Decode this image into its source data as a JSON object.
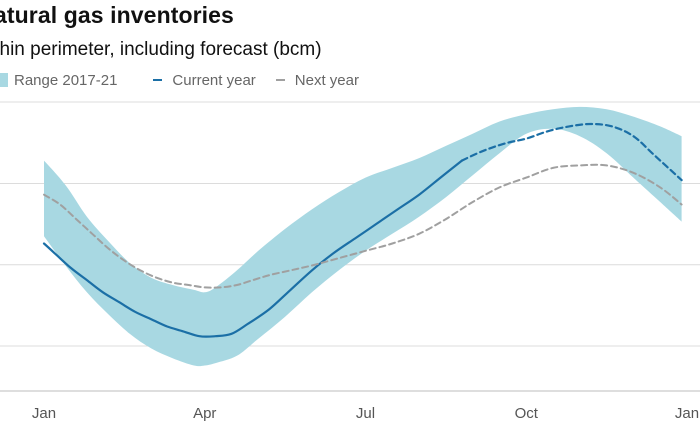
{
  "chart_data": {
    "type": "line",
    "title": "atural gas inventories",
    "subtitle": "ithin perimeter, including forecast (bcm)",
    "x_tick_labels": [
      "Jan",
      "Apr",
      "Jul",
      "Oct",
      "Jan"
    ],
    "xlim": [
      0,
      12
    ],
    "ylim": [
      0,
      100
    ],
    "grid": true,
    "legend_position": "top",
    "colors": {
      "range": "#a8d8e2",
      "current": "#1b6fa6",
      "next": "#a0a0a0",
      "grid": "#dcdcdc"
    },
    "range_band": {
      "name": "Range 2017-21",
      "x": [
        0,
        0.4,
        0.8,
        1.2,
        1.6,
        2.0,
        2.4,
        2.8,
        3.0,
        3.2,
        3.6,
        4.0,
        4.5,
        5.0,
        5.5,
        6.0,
        6.5,
        7.0,
        7.5,
        8.0,
        8.5,
        9.0,
        9.5,
        10.0,
        10.5,
        11.0,
        11.5,
        11.9
      ],
      "min": [
        45,
        33,
        22,
        13,
        5,
        -1,
        -5,
        -8,
        -8,
        -7,
        -4,
        3,
        12,
        22,
        31,
        39,
        46,
        53,
        61,
        70,
        79,
        87,
        89,
        86,
        79,
        69,
        59,
        51
      ],
      "max": [
        76,
        66,
        53,
        43,
        34,
        28,
        25,
        23,
        22,
        24,
        31,
        39,
        48,
        56,
        63,
        69,
        73,
        77,
        82,
        87,
        92,
        95,
        97,
        98,
        97,
        94,
        90,
        86
      ]
    },
    "series": [
      {
        "name": "Current year",
        "style": "solid",
        "x": [
          0,
          0.2,
          0.5,
          0.8,
          1.1,
          1.4,
          1.7,
          2.0,
          2.3,
          2.6,
          2.9,
          3.2,
          3.5,
          3.8,
          4.2,
          4.6,
          5.0,
          5.4,
          5.8,
          6.2,
          6.6,
          7.0,
          7.4,
          7.8
        ],
        "y": [
          42,
          38,
          32,
          27,
          22,
          18,
          14,
          11,
          8,
          6,
          4,
          4,
          5,
          9,
          15,
          23,
          31,
          38,
          44,
          50,
          56,
          62,
          69,
          76
        ]
      },
      {
        "name": "Current year",
        "style": "dashed",
        "x": [
          7.8,
          8.2,
          8.6,
          9.0,
          9.4,
          9.8,
          10.2,
          10.6,
          11.0,
          11.4,
          11.9
        ],
        "y": [
          76,
          80,
          83,
          85,
          88,
          90,
          91,
          90,
          86,
          78,
          68
        ]
      },
      {
        "name": "Next year",
        "style": "dashed",
        "x": [
          0,
          0.3,
          0.6,
          0.9,
          1.2,
          1.5,
          1.8,
          2.1,
          2.4,
          2.7,
          3.0,
          3.3,
          3.6,
          3.9,
          4.2,
          4.6,
          5.0,
          5.5,
          6.0,
          6.5,
          7.0,
          7.5,
          8.0,
          8.5,
          9.0,
          9.5,
          10.0,
          10.5,
          11.0,
          11.5,
          11.9
        ],
        "y": [
          62,
          58,
          52,
          46,
          40,
          35,
          31,
          28,
          26,
          25,
          24,
          24,
          25,
          27,
          29,
          31,
          33,
          36,
          39,
          42,
          46,
          52,
          59,
          65,
          69,
          73,
          74,
          74,
          71,
          65,
          58
        ]
      }
    ]
  }
}
